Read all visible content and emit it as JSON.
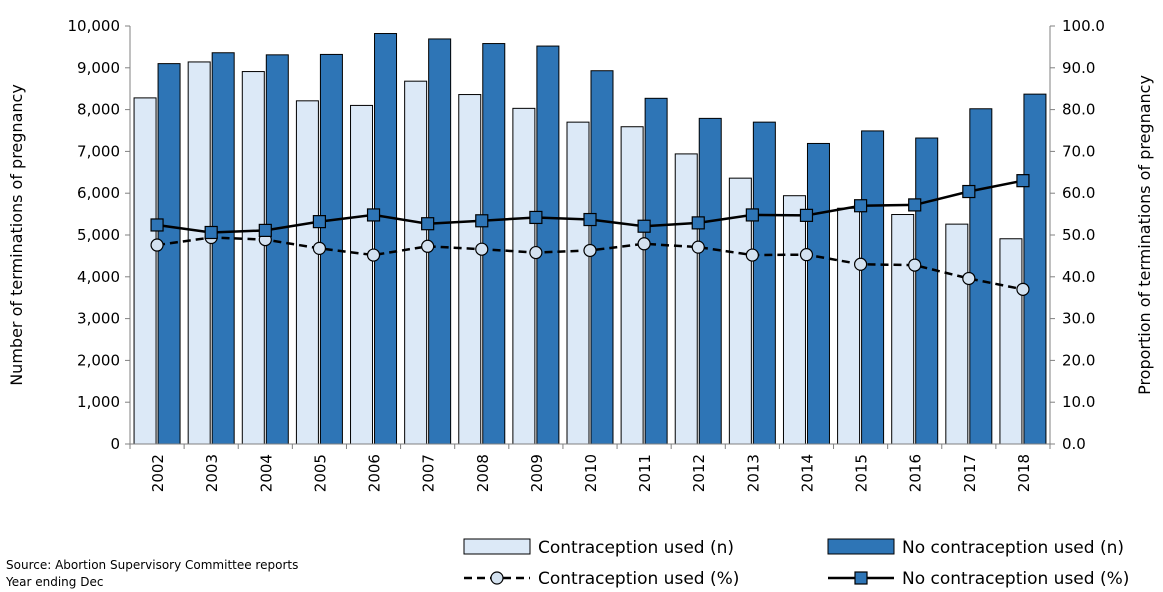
{
  "chart_data": {
    "type": "bar",
    "categories": [
      "2002",
      "2003",
      "2004",
      "2005",
      "2006",
      "2007",
      "2008",
      "2009",
      "2010",
      "2011",
      "2012",
      "2013",
      "2014",
      "2015",
      "2016",
      "2017",
      "2018"
    ],
    "series": [
      {
        "name": "Contraception used (n)",
        "kind": "bar",
        "axis": "left",
        "color": "#dce9f7",
        "values": [
          8280,
          9140,
          8910,
          8210,
          8100,
          8680,
          8360,
          8030,
          7700,
          7590,
          6940,
          6360,
          5940,
          5640,
          5490,
          5260,
          4910
        ]
      },
      {
        "name": "No contraception used (n)",
        "kind": "bar",
        "axis": "left",
        "color": "#2e75b6",
        "values": [
          9100,
          9360,
          9310,
          9320,
          9820,
          9690,
          9580,
          9520,
          8930,
          8270,
          7790,
          7700,
          7190,
          7490,
          7320,
          8020,
          8370
        ]
      },
      {
        "name": "Contraception used (%)",
        "kind": "line",
        "axis": "right",
        "style": "dashed",
        "marker": "circle",
        "color": "#000000",
        "values": [
          47.6,
          49.4,
          48.9,
          46.8,
          45.2,
          47.3,
          46.6,
          45.8,
          46.3,
          47.9,
          47.1,
          45.2,
          45.3,
          43.0,
          42.8,
          39.6,
          37.0
        ]
      },
      {
        "name": "No contraception used (%)",
        "kind": "line",
        "axis": "right",
        "style": "solid",
        "marker": "square",
        "color": "#000000",
        "values": [
          52.4,
          50.6,
          51.1,
          53.2,
          54.8,
          52.7,
          53.4,
          54.2,
          53.7,
          52.1,
          52.9,
          54.8,
          54.7,
          57.0,
          57.2,
          60.4,
          63.0
        ]
      }
    ],
    "ylabel": "Number of terminations of pregnancy",
    "ylabel_right": "Proportion of terminations of pregnancy",
    "ylim": [
      0,
      10000
    ],
    "ylim_right": [
      0,
      100
    ],
    "y_ticks": [
      "0",
      "1,000",
      "2,000",
      "3,000",
      "4,000",
      "5,000",
      "6,000",
      "7,000",
      "8,000",
      "9,000",
      "10,000"
    ],
    "y_ticks_right": [
      "0.0",
      "10.0",
      "20.0",
      "30.0",
      "40.0",
      "50.0",
      "60.0",
      "70.0",
      "80.0",
      "90.0",
      "100.0"
    ],
    "grid": false,
    "legend_position": "bottom-right"
  },
  "source_note": {
    "line1": "Source: Abortion Supervisory Committee reports",
    "line2": "Year ending Dec"
  }
}
